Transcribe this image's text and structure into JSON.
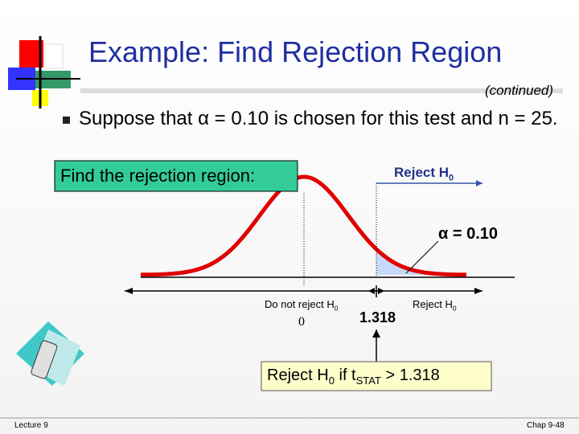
{
  "title": "Example: Find Rejection Region",
  "subtitle": "(continued)",
  "bullet": "Suppose that α = 0.10 is chosen for this test and n = 25.",
  "prompt": "Find the rejection region:",
  "reject_top": {
    "text": "Reject H",
    "sub": "0"
  },
  "alpha_label": "α = 0.10",
  "do_not_reject": {
    "text": "Do not reject H",
    "sub": "0"
  },
  "center_value": "0",
  "critical_value": "1.318",
  "reject_small": {
    "text": "Reject H",
    "sub": "0"
  },
  "conclusion": {
    "part1": "Reject H",
    "sub1": "0",
    "part2": " if t",
    "sub2": "STAT",
    "part3": " > 1.318"
  },
  "footer_left": "Lecture 9",
  "footer_right": "Chap 9-48"
}
